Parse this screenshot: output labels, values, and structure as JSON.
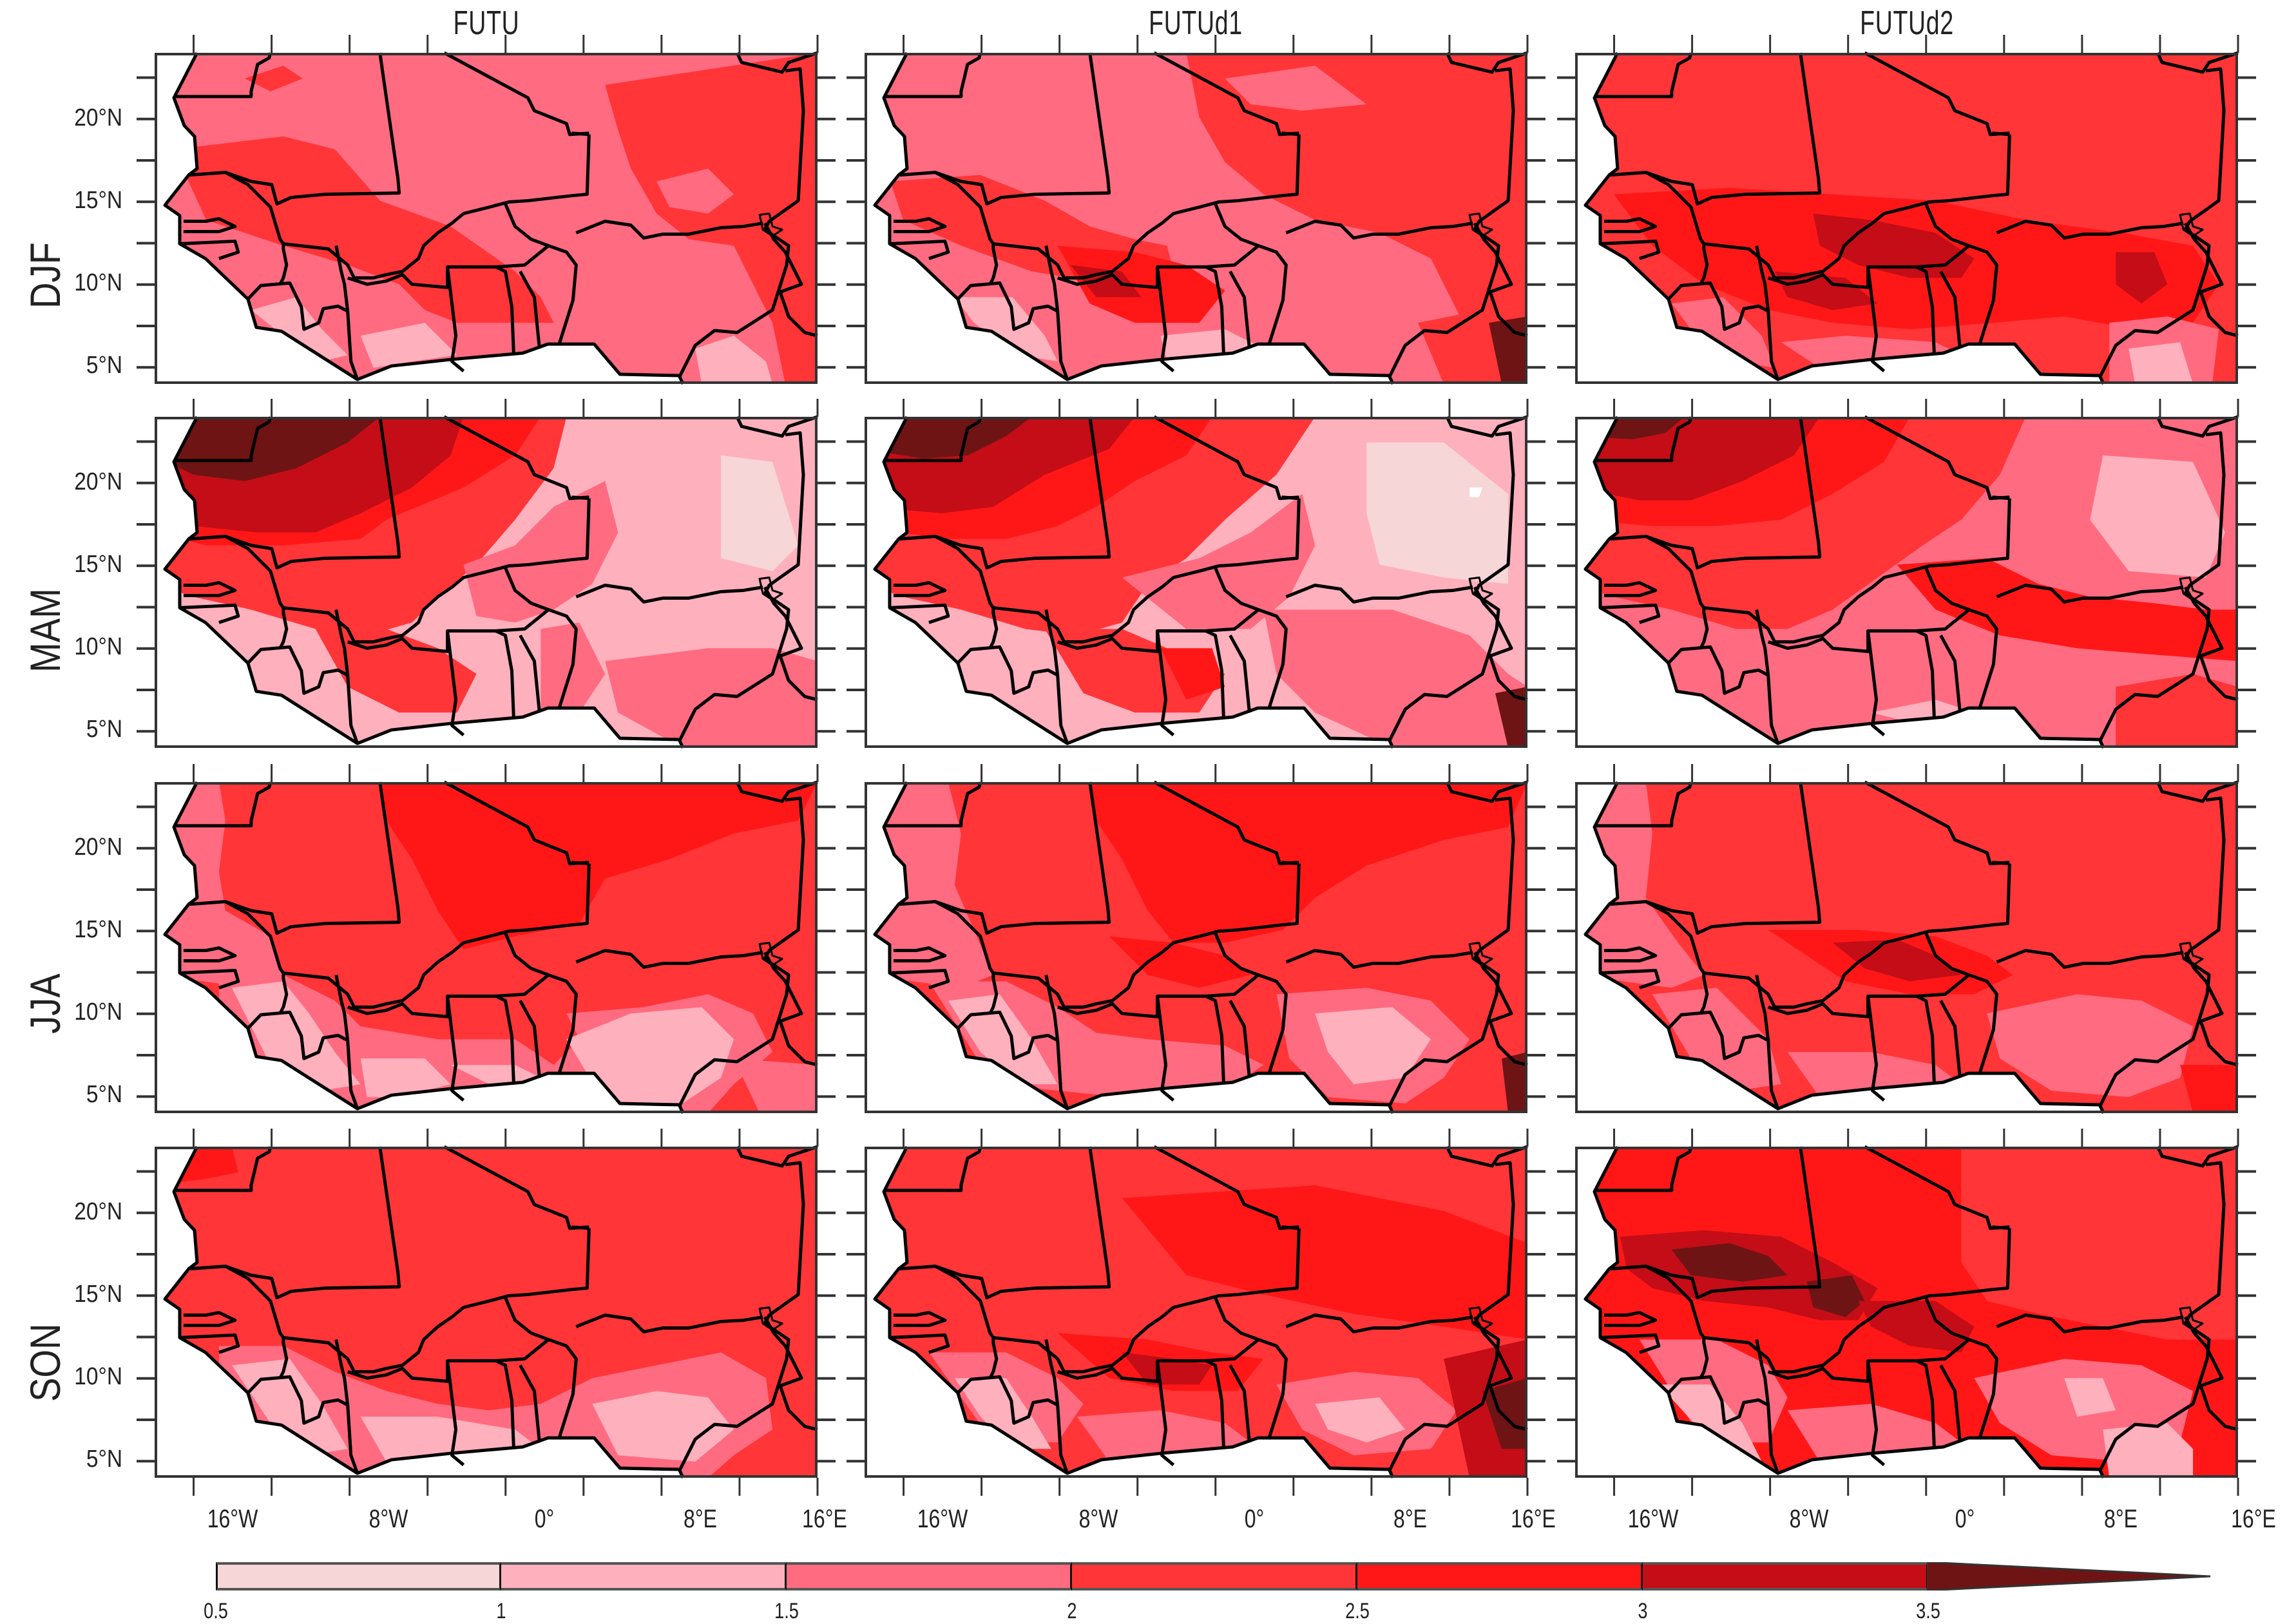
{
  "chart_data": {
    "type": "heatmap",
    "title": "",
    "description": "3x4 grid of filled-contour maps over West Africa showing projected change (warming) by season and experiment",
    "columns": [
      "FUTU",
      "FUTUd1",
      "FUTUd2"
    ],
    "rows": [
      "DJF",
      "MAM",
      "JJA",
      "SON"
    ],
    "xaxis": {
      "range": [
        -18,
        16
      ],
      "ticks": [
        -16,
        -12,
        -8,
        -4,
        0,
        4,
        8,
        12,
        16
      ],
      "tick_labels": [
        "16°W",
        "8°W",
        "0°",
        "8°E",
        "16°E"
      ],
      "labeled_ticks": [
        -16,
        -8,
        0,
        8,
        16
      ]
    },
    "yaxis": {
      "range": [
        4,
        24
      ],
      "ticks": [
        5,
        7.5,
        10,
        12.5,
        15,
        17.5,
        20,
        22.5
      ],
      "tick_labels": [
        "5°N",
        "10°N",
        "15°N",
        "20°N"
      ],
      "labeled_ticks": [
        5,
        10,
        15,
        20
      ]
    },
    "colorbar": {
      "levels": [
        0.5,
        1,
        1.5,
        2,
        2.5,
        3,
        3.5
      ],
      "labels": [
        "0.5",
        "1",
        "1.5",
        "2",
        "2.5",
        "3",
        "3.5"
      ],
      "colors": [
        "#f6d6d6",
        "#ffb0bd",
        "#ff6b80",
        "#ff3538",
        "#ff1717",
        "#c40d17",
        "#6e1414"
      ],
      "extend": "max",
      "orientation": "horizontal"
    },
    "panels": [
      {
        "row": "DJF",
        "col": "FUTU",
        "dominant_range": "1.5-2.5",
        "max_range": "2-2.5",
        "notes": "mostly 1.5-2 in north/Sahara, 2-2.5 in Senegal, Guinea, Mali, Niger east; 1-1.5 along Gulf coast"
      },
      {
        "row": "DJF",
        "col": "FUTUd1",
        "dominant_range": "1.5-2.5",
        "max_range": ">3.5",
        "notes": "2-2.5 across Sahel, 2.5-3 patches in Côte d'Ivoire/Ghana, >3.5 at SE corner (Cameroon)"
      },
      {
        "row": "DJF",
        "col": "FUTUd2",
        "dominant_range": "2-3",
        "max_range": "3-3.5",
        "notes": "2-2.5 north, 2.5-3.5 over Burkina Faso, Côte d'Ivoire, Nigeria"
      },
      {
        "row": "MAM",
        "col": "FUTU",
        "dominant_range": "1-3.5",
        "max_range": ">3.5",
        "notes": ">3.5 over NW Mauritania, 3-3.5 Mauritania, 1-1.5 over Niger/Nigeria"
      },
      {
        "row": "MAM",
        "col": "FUTUd1",
        "dominant_range": "0.5-3.5",
        "max_range": ">3.5",
        "notes": ">3.5 NW corner, 0.5-1 over central Niger"
      },
      {
        "row": "MAM",
        "col": "FUTUd2",
        "dominant_range": "1-3.5",
        "max_range": ">3.5",
        "notes": "3-3.5 Mauritania, 2.5-3 Sahel, 1-1.5 Niger"
      },
      {
        "row": "JJA",
        "col": "FUTU",
        "dominant_range": "1-3",
        "max_range": "2.5-3",
        "notes": "2.5-3 over Mali/Algeria, 1-1.5 along Guinea coast and Nigeria"
      },
      {
        "row": "JJA",
        "col": "FUTUd1",
        "dominant_range": "1-3",
        "max_range": ">3.5",
        "notes": "2.5-3 over Mali, 1-1.5 over Nigeria, >3.5 at SE corner"
      },
      {
        "row": "JJA",
        "col": "FUTUd2",
        "dominant_range": "1.5-3.5",
        "max_range": "3-3.5",
        "notes": "2-2.5 north, 3-3.5 over Burkina Faso"
      },
      {
        "row": "SON",
        "col": "FUTU",
        "dominant_range": "1-2.5",
        "max_range": "2-2.5",
        "notes": "2-2.5 north, 1-1.5 along coast"
      },
      {
        "row": "SON",
        "col": "FUTUd1",
        "dominant_range": "1.5-3",
        "max_range": ">3.5",
        "notes": "2.5-3 over Burkina/Ghana, >3.5 near Cameroon"
      },
      {
        "row": "SON",
        "col": "FUTUd2",
        "dominant_range": "1.5-3.5",
        "max_range": ">3.5",
        "notes": ">3.5 over southern Mauritania/Mali, 2.5-3 Sahara"
      }
    ]
  },
  "columns": [
    {
      "title": "FUTU"
    },
    {
      "title": "FUTUd1"
    },
    {
      "title": "FUTUd2"
    }
  ],
  "rows": [
    {
      "title": "DJF"
    },
    {
      "title": "MAM"
    },
    {
      "title": "JJA"
    },
    {
      "title": "SON"
    }
  ],
  "ytick_labels": [
    "20°N",
    "15°N",
    "10°N",
    "5°N"
  ],
  "xtick_labels": [
    "16°W",
    "8°W",
    "0°",
    "8°E",
    "16°E"
  ],
  "colorbar": {
    "labels": [
      "0.5",
      "1",
      "1.5",
      "2",
      "2.5",
      "3",
      "3.5"
    ],
    "colors": [
      "#f6d6d6",
      "#ffb0bd",
      "#ff6b80",
      "#ff3538",
      "#ff1717",
      "#c40d17",
      "#6e1414"
    ]
  }
}
